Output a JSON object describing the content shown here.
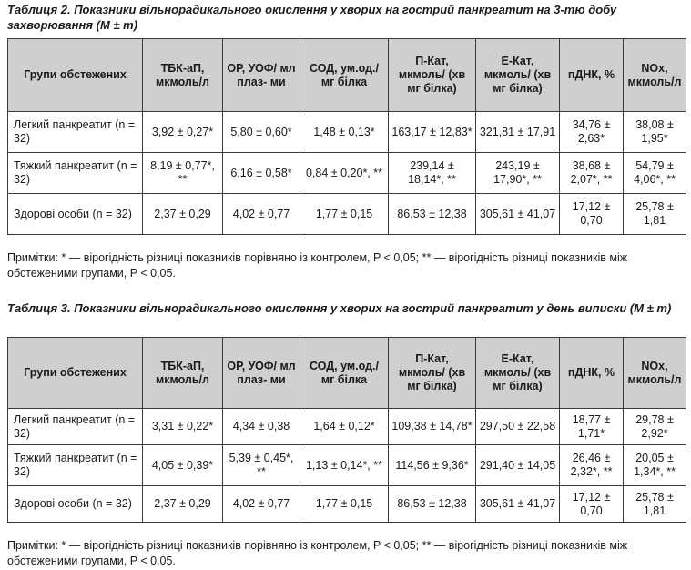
{
  "table2": {
    "caption": "Таблиця 2. Показники вільнорадикального окислення у хворих на гострий панкреатит на 3-тю добу захворювання (M ± m)",
    "headers": [
      "Групи обстежених",
      "ТБК-аП, мкмоль/л",
      "ОР, УОФ/ мл плаз- ми",
      "СОД, ум.од./мг білка",
      "П-Кат, мкмоль/ (хв мг білка)",
      "Е-Кат, мкмоль/ (хв мг білка)",
      "пДНК, %",
      "NOx, мкмоль/л"
    ],
    "rows": [
      {
        "group": "Легкий панкреатит (n = 32)",
        "cells": [
          "3,92 ± 0,27*",
          "5,80 ± 0,60*",
          "1,48 ± 0,13*",
          "163,17 ± 12,83*",
          "321,81 ± 17,91",
          "34,76 ± 2,63*",
          "38,08 ± 1,95*"
        ]
      },
      {
        "group": "Тяжкий панкреатит (n = 32)",
        "cells": [
          "8,19 ± 0,77*, **",
          "6,16 ± 0,58*",
          "0,84 ± 0,20*, **",
          "239,14 ± 18,14*, **",
          "243,19 ± 17,90*, **",
          "38,68 ± 2,07*, **",
          "54,79 ± 4,06*, **"
        ]
      },
      {
        "group": "Здорові особи (n = 32)",
        "cells": [
          "2,37 ± 0,29",
          "4,02 ± 0,77",
          "1,77 ± 0,15",
          "86,53 ± 12,38",
          "305,61 ± 41,07",
          "17,12 ± 0,70",
          "25,78 ± 1,81"
        ]
      }
    ],
    "note": "Примітки: * — вірогідність різниці показників порівняно із контролем, P < 0,05; ** — вірогідність різниці показників між обстеженими групами, P < 0,05."
  },
  "table3": {
    "caption": "Таблиця 3. Показники вільнорадикального окислення у хворих на гострий панкреатит у день виписки (M ± m)",
    "headers": [
      "Групи обстежених",
      "ТБК-аП, мкмоль/л",
      "ОР, УОФ/ мл плаз- ми",
      "СОД, ум.од./мг білка",
      "П-Кат, мкмоль/ (хв мг білка)",
      "Е-Кат, мкмоль/ (хв мг білка)",
      "пДНК, %",
      "NOx, мкмоль/л"
    ],
    "rows": [
      {
        "group": "Легкий панкреатит (n = 32)",
        "cells": [
          "3,31 ± 0,22*",
          "4,34 ± 0,38",
          "1,64 ± 0,12*",
          "109,38 ± 14,78*",
          "297,50 ± 22,58",
          "18,77 ± 1,71*",
          "29,78 ± 2,92*"
        ]
      },
      {
        "group": "Тяжкий панкреатит (n = 32)",
        "cells": [
          "4,05 ± 0,39*",
          "5,39 ± 0,45*, **",
          "1,13 ± 0,14*, **",
          "114,56 ± 9,36*",
          "291,40 ± 14,05",
          "26,46 ± 2,32*, **",
          "20,05 ± 1,34*, **"
        ]
      },
      {
        "group": "Здорові особи (n = 32)",
        "cells": [
          "2,37 ± 0,29",
          "4,02 ± 0,77",
          "1,77 ± 0,15",
          "86,53 ± 12,38",
          "305,61 ± 41,07",
          "17,12 ± 0,70",
          "25,78 ± 1,81"
        ]
      }
    ],
    "note": "Примітки: * — вірогідність різниці показників порівняно із контролем, P < 0,05; ** — вірогідність різниці показників між обстеженими групами, P < 0,05."
  }
}
